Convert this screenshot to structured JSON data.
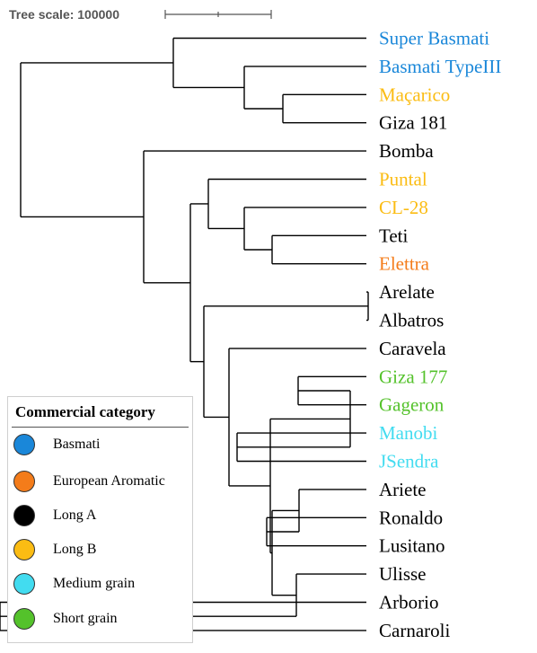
{
  "scale": {
    "label": "Tree scale: 100000"
  },
  "categories": {
    "basmati": {
      "label": "Basmati",
      "color": "#1a87d9"
    },
    "european_aromatic": {
      "label": "European Aromatic",
      "color": "#f47c1a"
    },
    "long_a": {
      "label": "Long A",
      "color": "#000000"
    },
    "long_b": {
      "label": "Long B",
      "color": "#fbbc13"
    },
    "medium_grain": {
      "label": "Medium grain",
      "color": "#42dcf0"
    },
    "short_grain": {
      "label": "Short grain",
      "color": "#54c22b"
    }
  },
  "legend": {
    "title": "Commercial category",
    "items": [
      {
        "label": "Basmati",
        "color": "#1a87d9"
      },
      {
        "label": "European Aromatic",
        "color": "#f47c1a"
      },
      {
        "label": "Long A",
        "color": "#000000"
      },
      {
        "label": "Long B",
        "color": "#fbbc13"
      },
      {
        "label": "Medium grain",
        "color": "#42dcf0"
      },
      {
        "label": "Short grain",
        "color": "#54c22b"
      }
    ]
  },
  "tree": {
    "c": [
      {
        "c": [
          {
            "n": "Super Basmati",
            "cat": "basmati"
          },
          {
            "c": [
              {
                "n": "Basmati TypeIII",
                "cat": "basmati"
              },
              {
                "c": [
                  {
                    "n": "Maçarico",
                    "cat": "long_b"
                  },
                  {
                    "n": "Giza 181",
                    "cat": "long_a"
                  }
                ]
              }
            ]
          }
        ]
      },
      {
        "c": [
          {
            "n": "Bomba",
            "cat": "long_a"
          },
          {
            "c": [
              {
                "c": [
                  {
                    "n": "Puntal",
                    "cat": "long_b"
                  },
                  {
                    "c": [
                      {
                        "n": "CL-28",
                        "cat": "long_b"
                      },
                      {
                        "c": [
                          {
                            "n": "Teti",
                            "cat": "long_a"
                          },
                          {
                            "n": "Elettra",
                            "cat": "european_aromatic"
                          }
                        ]
                      }
                    ]
                  }
                ]
              },
              {
                "c": [
                  {
                    "c": [
                      {
                        "n": "Arelate",
                        "cat": "long_a"
                      },
                      {
                        "n": "Albatros",
                        "cat": "long_a"
                      }
                    ]
                  },
                  {
                    "c": [
                      {
                        "n": "Caravela",
                        "cat": "long_a"
                      },
                      {
                        "c": [
                          {
                            "c": [
                              {
                                "c": [
                                  {
                                    "n": "Giza 177",
                                    "cat": "short_grain"
                                  },
                                  {
                                    "n": "Gageron",
                                    "cat": "short_grain"
                                  }
                                ]
                              },
                              {
                                "c": [
                                  {
                                    "n": "Manobi",
                                    "cat": "medium_grain"
                                  },
                                  {
                                    "n": "JSendra",
                                    "cat": "medium_grain"
                                  }
                                ]
                              }
                            ]
                          },
                          {
                            "c": [
                              {
                                "c": [
                                  {
                                    "n": "Ariete",
                                    "cat": "long_a"
                                  },
                                  {
                                    "c": [
                                      {
                                        "n": "Ronaldo",
                                        "cat": "long_a"
                                      },
                                      {
                                        "n": "Lusitano",
                                        "cat": "long_a"
                                      }
                                    ]
                                  }
                                ]
                              },
                              {
                                "c": [
                                  {
                                    "n": "Ulisse",
                                    "cat": "long_a"
                                  },
                                  {
                                    "c": [
                                      {
                                        "n": "Arborio",
                                        "cat": "long_a"
                                      },
                                      {
                                        "n": "Carnaroli",
                                        "cat": "long_a"
                                      }
                                    ]
                                  }
                                ]
                              }
                            ]
                          }
                        ]
                      }
                    ]
                  }
                ]
              }
            ]
          }
        ]
      }
    ]
  }
}
